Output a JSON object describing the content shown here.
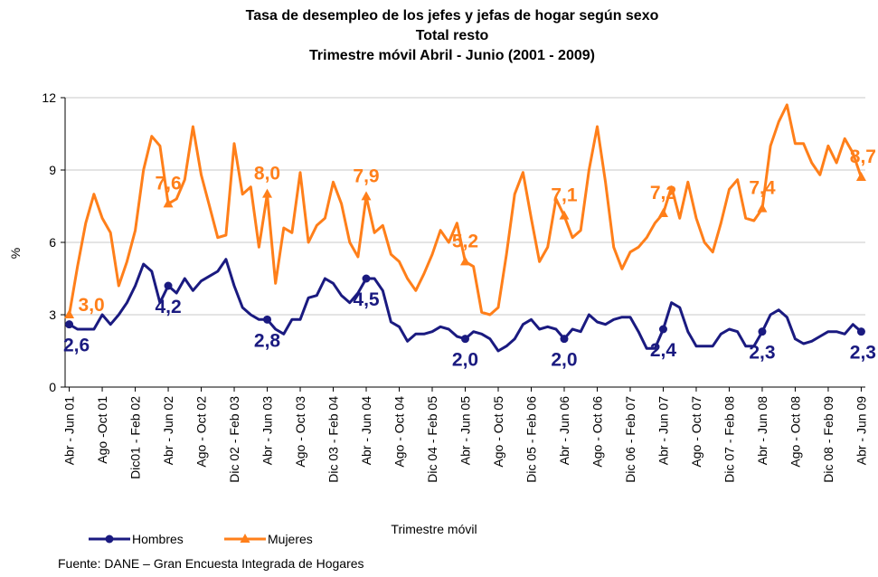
{
  "chart_data": {
    "type": "line",
    "title": "Tasa de desempleo de los jefes y jefas de hogar según sexo",
    "subtitle": [
      "Total resto",
      "Trimestre móvil Abril - Junio (2001 - 2009)"
    ],
    "y_label": "%",
    "x_label": "Trimestre móvil",
    "source": "Fuente: DANE – Gran Encuesta Integrada de Hogares",
    "categories": [
      "Abr - Jun 01",
      null,
      null,
      null,
      "Ago -Oct 01",
      null,
      null,
      null,
      "Dic01 - Feb 02",
      null,
      null,
      null,
      "Abr - Jun 02",
      null,
      null,
      null,
      "Ago - Oct 02",
      null,
      null,
      null,
      "Dic 02 - Feb 03",
      null,
      null,
      null,
      "Abr - Jun 03",
      null,
      null,
      null,
      "Ago - Oct 03",
      null,
      null,
      null,
      "Dic 03 - Feb 04",
      null,
      null,
      null,
      "Abr - Jun 04",
      null,
      null,
      null,
      "Ago - Oct 04",
      null,
      null,
      null,
      "Dic 04 - Feb 05",
      null,
      null,
      null,
      "Abr - Jun 05",
      null,
      null,
      null,
      "Ago - Oct 05",
      null,
      null,
      null,
      "Dic 05 - Feb 06",
      null,
      null,
      null,
      "Abr - Jun 06",
      null,
      null,
      null,
      "Ago - Oct 06",
      null,
      null,
      null,
      "Dic 06 - Feb 07",
      null,
      null,
      null,
      "Abr - Jun 07",
      null,
      null,
      null,
      "Ago - Oct 07",
      null,
      null,
      null,
      "Dic 07 - Feb 08",
      null,
      null,
      null,
      "Abr - Jun 08",
      null,
      null,
      null,
      "Ago - Oct 08",
      null,
      null,
      null,
      "Dic 08 - Feb 09",
      null,
      null,
      null,
      "Abr - Jun 09"
    ],
    "series": [
      {
        "name": "Hombres",
        "color": "#1a1a80",
        "marker": "circle",
        "values": [
          2.6,
          2.4,
          2.4,
          2.4,
          3.0,
          2.6,
          3.0,
          3.5,
          4.2,
          5.1,
          4.8,
          3.5,
          4.2,
          3.9,
          4.5,
          4.0,
          4.4,
          4.6,
          4.8,
          5.3,
          4.2,
          3.3,
          3.0,
          2.8,
          2.8,
          2.4,
          2.2,
          2.8,
          2.8,
          3.7,
          3.8,
          4.5,
          4.3,
          3.8,
          3.5,
          3.9,
          4.5,
          4.5,
          4.0,
          2.7,
          2.5,
          1.9,
          2.2,
          2.2,
          2.3,
          2.5,
          2.4,
          2.1,
          2.0,
          2.3,
          2.2,
          2.0,
          1.5,
          1.7,
          2.0,
          2.6,
          2.8,
          2.4,
          2.5,
          2.4,
          2.0,
          2.4,
          2.3,
          3.0,
          2.7,
          2.6,
          2.8,
          2.9,
          2.9,
          2.3,
          1.6,
          1.6,
          2.4,
          3.5,
          3.3,
          2.3,
          1.7,
          1.7,
          1.7,
          2.2,
          2.4,
          2.3,
          1.7,
          1.7,
          2.3,
          3.0,
          3.2,
          2.9,
          2.0,
          1.8,
          1.9,
          2.1,
          2.3,
          2.3,
          2.2,
          2.6,
          2.3
        ],
        "value_labels": [
          "2,6",
          null,
          null,
          null,
          null,
          null,
          null,
          null,
          null,
          null,
          null,
          null,
          "4,2",
          null,
          null,
          null,
          null,
          null,
          null,
          null,
          null,
          null,
          null,
          null,
          "2,8",
          null,
          null,
          null,
          null,
          null,
          null,
          null,
          null,
          null,
          null,
          null,
          "4,5",
          null,
          null,
          null,
          null,
          null,
          null,
          null,
          null,
          null,
          null,
          null,
          "2,0",
          null,
          null,
          null,
          null,
          null,
          null,
          null,
          null,
          null,
          null,
          null,
          "2,0",
          null,
          null,
          null,
          null,
          null,
          null,
          null,
          null,
          null,
          null,
          null,
          "2,4",
          null,
          null,
          null,
          null,
          null,
          null,
          null,
          null,
          null,
          null,
          null,
          "2,3",
          null,
          null,
          null,
          null,
          null,
          null,
          null,
          null,
          null,
          null,
          null,
          "2,3"
        ]
      },
      {
        "name": "Mujeres",
        "color": "#ff7f1a",
        "marker": "triangle",
        "values": [
          3.0,
          5.0,
          6.8,
          8.0,
          7.0,
          6.4,
          4.2,
          5.2,
          6.5,
          9.0,
          10.4,
          10.0,
          7.6,
          7.8,
          8.6,
          10.8,
          8.8,
          7.5,
          6.2,
          6.3,
          10.1,
          8.0,
          8.3,
          5.8,
          8.0,
          4.3,
          6.6,
          6.4,
          8.9,
          6.0,
          6.7,
          7.0,
          8.5,
          7.6,
          6.0,
          5.4,
          7.9,
          6.4,
          6.7,
          5.5,
          5.2,
          4.5,
          4.0,
          4.7,
          5.5,
          6.5,
          6.0,
          6.8,
          5.2,
          5.0,
          3.1,
          3.0,
          3.3,
          5.5,
          8.0,
          8.9,
          7.0,
          5.2,
          5.8,
          7.8,
          7.1,
          6.2,
          6.5,
          9.0,
          10.8,
          8.5,
          5.8,
          4.9,
          5.6,
          5.8,
          6.2,
          6.8,
          7.2,
          8.3,
          7.0,
          8.5,
          7.0,
          6.0,
          5.6,
          6.8,
          8.2,
          8.6,
          7.0,
          6.9,
          7.4,
          10.0,
          11.0,
          11.7,
          10.1,
          10.1,
          9.3,
          8.8,
          10.0,
          9.3,
          10.3,
          9.7,
          8.7
        ],
        "value_labels": [
          "3,0",
          null,
          null,
          null,
          null,
          null,
          null,
          null,
          null,
          null,
          null,
          null,
          "7,6",
          null,
          null,
          null,
          null,
          null,
          null,
          null,
          null,
          null,
          null,
          null,
          "8,0",
          null,
          null,
          null,
          null,
          null,
          null,
          null,
          null,
          null,
          null,
          null,
          "7,9",
          null,
          null,
          null,
          null,
          null,
          null,
          null,
          null,
          null,
          null,
          null,
          "5,2",
          null,
          null,
          null,
          null,
          null,
          null,
          null,
          null,
          null,
          null,
          null,
          "7,1",
          null,
          null,
          null,
          null,
          null,
          null,
          null,
          null,
          null,
          null,
          null,
          "7,2",
          null,
          null,
          null,
          null,
          null,
          null,
          null,
          null,
          null,
          null,
          null,
          "7,4",
          null,
          null,
          null,
          null,
          null,
          null,
          null,
          null,
          null,
          null,
          null,
          "8,7"
        ]
      }
    ],
    "ylim": [
      0,
      12
    ],
    "yticks": [
      0,
      3,
      6,
      9,
      12
    ],
    "grid": true,
    "legend": "bottom-left"
  }
}
